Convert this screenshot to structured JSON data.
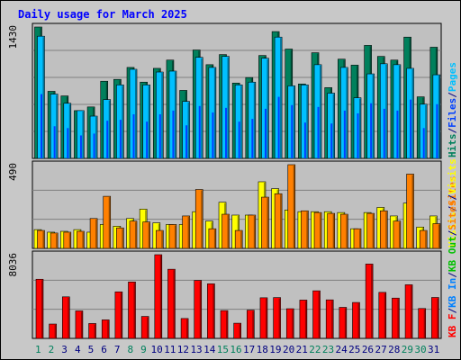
{
  "title": "Daily usage for March 2025",
  "colors": {
    "hits": "#00805c",
    "files": "#0040ff",
    "pages": "#00c0ff",
    "visits": "#ffff00",
    "sites": "#ff8000",
    "kb_in": "#0080ff",
    "kb_out": "#00c000",
    "kbf": "#ff0000",
    "title": "#0000ff",
    "weekend_label": "#00805c",
    "weekday_label": "#000080"
  },
  "chart_data": [
    {
      "type": "bar",
      "x": [
        "1",
        "2",
        "3",
        "4",
        "5",
        "6",
        "7",
        "8",
        "9",
        "10",
        "11",
        "12",
        "13",
        "14",
        "15",
        "16",
        "17",
        "18",
        "19",
        "20",
        "21",
        "22",
        "23",
        "24",
        "25",
        "26",
        "27",
        "28",
        "29",
        "30",
        "31"
      ],
      "weekend_days": [
        "1",
        "2",
        "8",
        "9",
        "15",
        "16",
        "22",
        "23",
        "29",
        "30"
      ],
      "ymax_label": "1430",
      "ylim": [
        0,
        1430
      ],
      "legend": [
        {
          "label": "Hits",
          "color_key": "hits"
        },
        {
          "label": "/",
          "color_key": "weekday_label"
        },
        {
          "label": "Files",
          "color_key": "files"
        },
        {
          "label": "/",
          "color_key": "weekday_label"
        },
        {
          "label": "Pages",
          "color_key": "pages"
        }
      ],
      "series": [
        {
          "name": "Hits",
          "color_key": "hits",
          "values": [
            1430,
            730,
            680,
            520,
            560,
            840,
            860,
            990,
            830,
            980,
            1070,
            740,
            1180,
            1020,
            1130,
            820,
            880,
            1120,
            1380,
            1190,
            810,
            1150,
            770,
            1080,
            1015,
            1230,
            1110,
            1070,
            1320,
            670,
            1210
          ]
        },
        {
          "name": "Files",
          "color_key": "files",
          "values": [
            700,
            350,
            330,
            250,
            270,
            410,
            420,
            480,
            400,
            480,
            520,
            360,
            570,
            500,
            550,
            400,
            430,
            540,
            670,
            580,
            390,
            560,
            380,
            520,
            490,
            600,
            540,
            520,
            640,
            330,
            590
          ]
        },
        {
          "name": "Pages",
          "color_key": "pages",
          "values": [
            1330,
            700,
            600,
            520,
            460,
            640,
            800,
            970,
            800,
            940,
            950,
            620,
            1100,
            990,
            1110,
            800,
            830,
            1090,
            1320,
            790,
            800,
            1020,
            710,
            990,
            660,
            920,
            1030,
            1020,
            980,
            590,
            910
          ]
        }
      ]
    },
    {
      "type": "bar",
      "x": [
        "1",
        "2",
        "3",
        "4",
        "5",
        "6",
        "7",
        "8",
        "9",
        "10",
        "11",
        "12",
        "13",
        "14",
        "15",
        "16",
        "17",
        "18",
        "19",
        "20",
        "21",
        "22",
        "23",
        "24",
        "25",
        "26",
        "27",
        "28",
        "29",
        "30",
        "31"
      ],
      "ymax_label": "490",
      "ylim": [
        0,
        490
      ],
      "legend": [
        {
          "label": "Visits",
          "color_key": "visits"
        },
        {
          "label": "/",
          "color_key": "weekday_label"
        },
        {
          "label": "Sites",
          "color_key": "sites"
        }
      ],
      "series": [
        {
          "name": "Visits",
          "color_key": "visits",
          "values": [
            110,
            95,
            100,
            110,
            95,
            140,
            130,
            175,
            230,
            150,
            140,
            140,
            215,
            160,
            270,
            195,
            195,
            390,
            350,
            225,
            215,
            215,
            215,
            210,
            115,
            210,
            240,
            190,
            265,
            125,
            190
          ]
        },
        {
          "name": "Sites",
          "color_key": "sites",
          "values": [
            105,
            90,
            95,
            100,
            175,
            305,
            120,
            160,
            155,
            105,
            140,
            190,
            345,
            115,
            200,
            105,
            195,
            300,
            320,
            490,
            220,
            210,
            205,
            200,
            115,
            205,
            220,
            160,
            435,
            105,
            145
          ]
        }
      ]
    },
    {
      "type": "bar",
      "x": [
        "1",
        "2",
        "3",
        "4",
        "5",
        "6",
        "7",
        "8",
        "9",
        "10",
        "11",
        "12",
        "13",
        "14",
        "15",
        "16",
        "17",
        "18",
        "19",
        "20",
        "21",
        "22",
        "23",
        "24",
        "25",
        "26",
        "27",
        "28",
        "29",
        "30",
        "31"
      ],
      "ymax_label": "8036",
      "ylim": [
        0,
        8036
      ],
      "legend": [
        {
          "label": "KB F",
          "color_key": "kbf"
        },
        {
          "label": "/",
          "color_key": "weekday_label"
        },
        {
          "label": "KB In",
          "color_key": "kb_in"
        },
        {
          "label": "/",
          "color_key": "weekday_label"
        },
        {
          "label": "KB Out",
          "color_key": "kb_out"
        },
        {
          "label": "/",
          "color_key": "weekday_label"
        },
        {
          "label": "Sites",
          "color_key": "sites"
        },
        {
          "label": "/",
          "color_key": "weekday_label"
        },
        {
          "label": "Visits",
          "color_key": "visits"
        }
      ],
      "series": [
        {
          "name": "KB F",
          "color_key": "kbf",
          "values": [
            5680,
            1380,
            3990,
            2640,
            1430,
            1780,
            4470,
            5420,
            2110,
            8036,
            6640,
            1910,
            5570,
            5240,
            2670,
            1460,
            2710,
            3900,
            3920,
            2850,
            3680,
            4570,
            3700,
            2980,
            3450,
            7140,
            4420,
            3870,
            5150,
            2870,
            3930
          ]
        }
      ]
    }
  ]
}
